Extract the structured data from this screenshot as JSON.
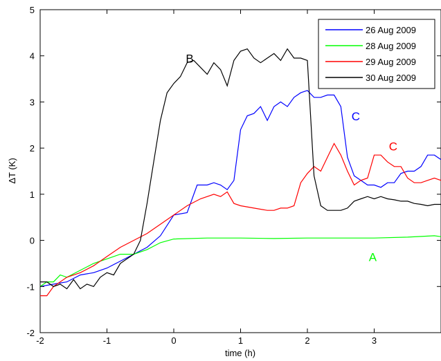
{
  "chart_data": {
    "type": "line",
    "xlabel": "time (h)",
    "ylabel": "ΔT (K)",
    "xlim": [
      -2,
      4
    ],
    "ylim": [
      -2,
      5
    ],
    "xticks": [
      "-2",
      "-1",
      "0",
      "1",
      "2",
      "3"
    ],
    "yticks": [
      "-2",
      "-1",
      "0",
      "1",
      "2",
      "3",
      "4",
      "5"
    ],
    "grid": false,
    "legend_position": "top-right",
    "series": [
      {
        "name": "26 Aug 2009",
        "color": "#0000ff",
        "x": [
          -2.0,
          -1.8,
          -1.6,
          -1.4,
          -1.2,
          -1.0,
          -0.8,
          -0.6,
          -0.4,
          -0.2,
          0.0,
          0.2,
          0.35,
          0.5,
          0.6,
          0.7,
          0.8,
          0.9,
          1.0,
          1.1,
          1.2,
          1.3,
          1.4,
          1.5,
          1.6,
          1.7,
          1.8,
          1.9,
          2.0,
          2.1,
          2.2,
          2.3,
          2.4,
          2.5,
          2.6,
          2.7,
          2.8,
          2.9,
          3.0,
          3.1,
          3.2,
          3.3,
          3.4,
          3.5,
          3.6,
          3.7,
          3.8,
          3.9,
          4.0
        ],
        "y": [
          -1.0,
          -0.95,
          -0.9,
          -0.75,
          -0.7,
          -0.6,
          -0.45,
          -0.3,
          -0.15,
          0.1,
          0.55,
          0.6,
          1.2,
          1.2,
          1.25,
          1.2,
          1.1,
          1.3,
          2.4,
          2.7,
          2.75,
          2.9,
          2.6,
          2.9,
          3.0,
          2.9,
          3.1,
          3.2,
          3.25,
          3.1,
          3.1,
          3.15,
          3.15,
          2.9,
          1.8,
          1.4,
          1.3,
          1.2,
          1.2,
          1.15,
          1.25,
          1.25,
          1.45,
          1.5,
          1.5,
          1.6,
          1.85,
          1.85,
          1.75
        ]
      },
      {
        "name": "28 Aug 2009",
        "color": "#00ff00",
        "x": [
          -2.0,
          -1.9,
          -1.8,
          -1.7,
          -1.6,
          -1.4,
          -1.2,
          -1.0,
          -0.8,
          -0.6,
          -0.4,
          -0.2,
          0.0,
          0.5,
          1.0,
          1.5,
          2.0,
          2.5,
          3.0,
          3.5,
          3.9,
          4.0
        ],
        "y": [
          -1.0,
          -0.9,
          -0.9,
          -0.75,
          -0.8,
          -0.65,
          -0.5,
          -0.4,
          -0.3,
          -0.3,
          -0.2,
          -0.05,
          0.03,
          0.05,
          0.05,
          0.04,
          0.05,
          0.05,
          0.05,
          0.07,
          0.1,
          0.08
        ]
      },
      {
        "name": "29 Aug 2009",
        "color": "#ff0000",
        "x": [
          -2.0,
          -1.9,
          -1.8,
          -1.6,
          -1.4,
          -1.2,
          -1.0,
          -0.8,
          -0.6,
          -0.4,
          -0.2,
          0.0,
          0.2,
          0.4,
          0.6,
          0.7,
          0.8,
          0.9,
          1.0,
          1.2,
          1.4,
          1.5,
          1.6,
          1.7,
          1.8,
          1.9,
          2.0,
          2.1,
          2.2,
          2.3,
          2.4,
          2.5,
          2.6,
          2.7,
          2.8,
          2.9,
          3.0,
          3.1,
          3.2,
          3.3,
          3.4,
          3.5,
          3.6,
          3.7,
          3.8,
          3.9,
          4.0
        ],
        "y": [
          -1.2,
          -1.2,
          -1.0,
          -0.8,
          -0.7,
          -0.55,
          -0.35,
          -0.15,
          0.0,
          0.15,
          0.35,
          0.55,
          0.75,
          0.9,
          1.0,
          0.95,
          1.05,
          0.8,
          0.75,
          0.7,
          0.65,
          0.65,
          0.7,
          0.7,
          0.75,
          1.25,
          1.45,
          1.6,
          1.5,
          1.8,
          2.1,
          1.85,
          1.5,
          1.2,
          1.3,
          1.35,
          1.85,
          1.85,
          1.7,
          1.6,
          1.6,
          1.35,
          1.25,
          1.25,
          1.3,
          1.35,
          1.3
        ]
      },
      {
        "name": "30 Aug 2009",
        "color": "#000000",
        "x": [
          -2.0,
          -1.9,
          -1.8,
          -1.7,
          -1.6,
          -1.5,
          -1.4,
          -1.3,
          -1.2,
          -1.1,
          -1.0,
          -0.9,
          -0.8,
          -0.7,
          -0.6,
          -0.5,
          -0.4,
          -0.3,
          -0.2,
          -0.1,
          0.0,
          0.1,
          0.2,
          0.3,
          0.4,
          0.5,
          0.6,
          0.7,
          0.8,
          0.9,
          1.0,
          1.1,
          1.2,
          1.3,
          1.4,
          1.5,
          1.6,
          1.7,
          1.8,
          1.9,
          2.0,
          2.1,
          2.2,
          2.3,
          2.4,
          2.5,
          2.6,
          2.7,
          2.8,
          2.9,
          3.0,
          3.1,
          3.2,
          3.3,
          3.4,
          3.5,
          3.6,
          3.7,
          3.8,
          3.9,
          4.0
        ],
        "y": [
          -0.9,
          -0.9,
          -1.0,
          -0.95,
          -1.05,
          -0.85,
          -1.05,
          -0.95,
          -1.0,
          -0.8,
          -0.7,
          -0.75,
          -0.5,
          -0.4,
          -0.3,
          0.0,
          0.8,
          1.7,
          2.6,
          3.2,
          3.4,
          3.55,
          3.85,
          3.9,
          3.75,
          3.6,
          3.85,
          3.7,
          3.35,
          3.9,
          4.1,
          4.15,
          3.95,
          3.85,
          3.95,
          4.05,
          3.9,
          4.15,
          3.95,
          3.95,
          3.9,
          1.4,
          0.75,
          0.65,
          0.65,
          0.65,
          0.7,
          0.85,
          0.9,
          0.95,
          0.9,
          0.95,
          0.9,
          0.88,
          0.85,
          0.85,
          0.8,
          0.78,
          0.75,
          0.78,
          0.78
        ]
      }
    ],
    "annotations": [
      {
        "text": "B",
        "x": 0.18,
        "y": 3.85,
        "color": "#000000"
      },
      {
        "text": "C",
        "x": 2.66,
        "y": 2.6,
        "color": "#0000ff"
      },
      {
        "text": "C",
        "x": 3.22,
        "y": 1.95,
        "color": "#ff0000"
      },
      {
        "text": "A",
        "x": 2.92,
        "y": -0.45,
        "color": "#00ff00"
      }
    ]
  }
}
